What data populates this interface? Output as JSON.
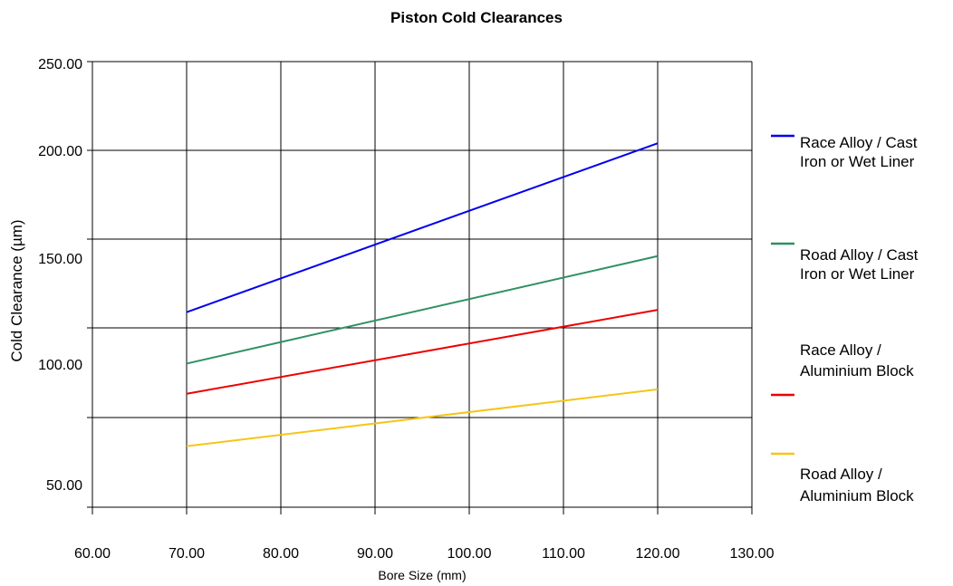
{
  "chart_data": {
    "type": "line",
    "title": "Piston Cold Clearances",
    "xlabel": "Bore Size (mm)",
    "ylabel": "Cold Clearance (µm)",
    "xlim": [
      60,
      130
    ],
    "x_ticks": [
      "60.00",
      "70.00",
      "80.00",
      "90.00",
      "100.00",
      "110.00",
      "120.00",
      "130.00"
    ],
    "y_ticks": [
      "50.00",
      "100.00",
      "150.00",
      "200.00",
      "250.00"
    ],
    "grid": true,
    "legend_position": "right",
    "x": [
      70,
      120
    ],
    "series": [
      {
        "name": "Race Alloy / Cast Iron or Wet Liner",
        "label_lines": [
          "Race Alloy / Cast",
          "Iron or Wet Liner"
        ],
        "color": "#0000ee",
        "values": [
          132,
          204
        ]
      },
      {
        "name": "Road Alloy / Cast Iron or Wet Liner",
        "label_lines": [
          "Road Alloy / Cast",
          "Iron or Wet Liner"
        ],
        "color": "#2e9161",
        "values": [
          108,
          162
        ]
      },
      {
        "name": "Race Alloy / Aluminium Block",
        "label_lines": [
          "Race Alloy /",
          "Aluminium Block"
        ],
        "color": "#ee0000",
        "values": [
          91,
          133
        ]
      },
      {
        "name": "Road Alloy / Aluminium Block",
        "label_lines": [
          "Road Alloy /",
          "Aluminium Block"
        ],
        "color": "#f5c518",
        "values": [
          67,
          94
        ]
      }
    ]
  }
}
